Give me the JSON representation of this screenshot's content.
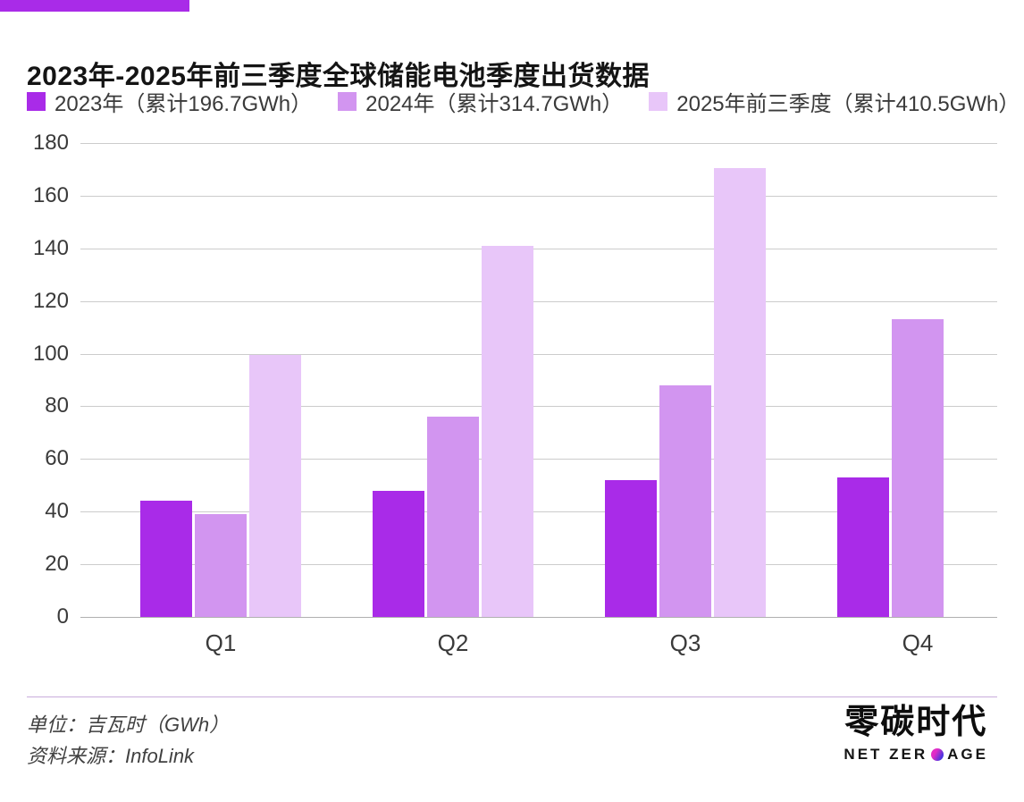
{
  "accent_color": "#a92be8",
  "header": {
    "title": "2023年-2025年前三季度全球储能电池季度出货数据"
  },
  "legend": {
    "items": [
      {
        "label": "2023年（累计196.7GWh）",
        "color": "#a92be8"
      },
      {
        "label": "2024年（累计314.7GWh）",
        "color": "#d295f0"
      },
      {
        "label": "2025年前三季度（累计410.5GWh）",
        "color": "#e8c6f9"
      }
    ]
  },
  "chart_data": {
    "type": "bar",
    "title": "2023年-2025年前三季度全球储能电池季度出货数据",
    "categories": [
      "Q1",
      "Q2",
      "Q3",
      "Q4"
    ],
    "series": [
      {
        "name": "2023年（累计196.7GWh）",
        "color": "#a92be8",
        "values": [
          44,
          48,
          52,
          53
        ]
      },
      {
        "name": "2024年（累计314.7GWh）",
        "color": "#d295f0",
        "values": [
          39,
          76,
          88,
          113
        ]
      },
      {
        "name": "2025年前三季度（累计410.5GWh）",
        "color": "#e8c6f9",
        "values": [
          99.5,
          141,
          170.5,
          null
        ]
      }
    ],
    "xlabel": "",
    "ylabel": "",
    "unit": "GWh",
    "ylim": [
      0,
      180
    ],
    "yticks": [
      0,
      20,
      40,
      60,
      80,
      100,
      120,
      140,
      160,
      180
    ],
    "grid": true,
    "gridline_color": "#cccccc",
    "legend_position": "top"
  },
  "footer": {
    "unit_note": "单位：吉瓦时（GWh）",
    "source_note": "资料来源：InfoLink",
    "divider_color": "#c9addc"
  },
  "logo": {
    "cn": "零碳时代",
    "en_pre": "NET ZER",
    "en_post": "AGE",
    "dot_color_start": "#e22cc6",
    "dot_color_end": "#4a35e0"
  }
}
